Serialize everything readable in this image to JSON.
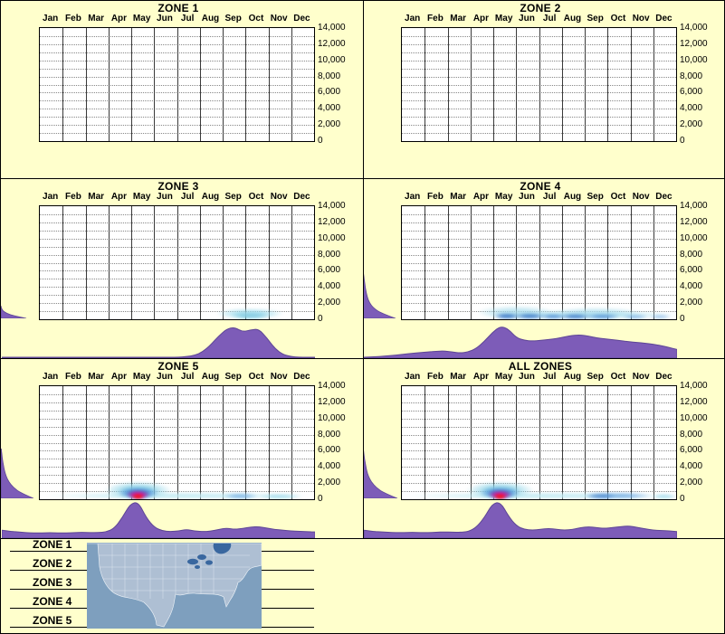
{
  "page": {
    "background": "#FFFFCC",
    "accent_purple": "#7D5CB8",
    "accent_purple_dark": "#5E4596"
  },
  "months": [
    "Jan",
    "Feb",
    "Mar",
    "Apr",
    "May",
    "Jun",
    "Jul",
    "Aug",
    "Sep",
    "Oct",
    "Nov",
    "Dec"
  ],
  "y_ticks": [
    "14,000",
    "12,000",
    "10,000",
    "8,000",
    "6,000",
    "4,000",
    "2,000",
    "0"
  ],
  "legend": {
    "items": [
      "ZONE 1",
      "ZONE 2",
      "ZONE 3",
      "ZONE 4",
      "ZONE 5"
    ],
    "map": "us-zones-map"
  },
  "chart_data": [
    {
      "type": "heatmap",
      "title": "ZONE 1",
      "x_categories": [
        "Jan",
        "Feb",
        "Mar",
        "Apr",
        "May",
        "Jun",
        "Jul",
        "Aug",
        "Sep",
        "Oct",
        "Nov",
        "Dec"
      ],
      "ylim": [
        0,
        14000
      ],
      "y_tick_step": 2000,
      "density_scale": "normalized 0-1",
      "season_density": [
        0,
        0
      ],
      "left_marginal": {
        "peak_height": 0,
        "peak_width": 0,
        "profile": []
      },
      "heat_blobs": []
    },
    {
      "type": "heatmap",
      "title": "ZONE 2",
      "x_categories": [
        "Jan",
        "Feb",
        "Mar",
        "Apr",
        "May",
        "Jun",
        "Jul",
        "Aug",
        "Sep",
        "Oct",
        "Nov",
        "Dec"
      ],
      "ylim": [
        0,
        14000
      ],
      "y_tick_step": 2000,
      "density_scale": "normalized 0-1",
      "season_density": [
        0,
        0
      ],
      "left_marginal": {
        "peak_height": 0,
        "peak_width": 0,
        "profile": []
      },
      "heat_blobs": []
    },
    {
      "type": "heatmap",
      "title": "ZONE 3",
      "x_categories": [
        "Jan",
        "Feb",
        "Mar",
        "Apr",
        "May",
        "Jun",
        "Jul",
        "Aug",
        "Sep",
        "Oct",
        "Nov",
        "Dec"
      ],
      "ylim": [
        0,
        14000
      ],
      "y_tick_step": 2000,
      "density_scale": "normalized 0-1",
      "season_density": [
        0,
        0,
        0,
        0,
        0,
        0,
        0,
        0,
        0,
        0,
        0,
        0,
        0,
        0,
        0,
        0,
        0,
        0,
        0,
        0,
        0,
        0,
        0,
        0.02,
        0.05,
        0.15,
        0.35,
        0.6,
        0.8,
        0.85,
        0.72,
        0.78,
        0.8,
        0.55,
        0.25,
        0.08,
        0.02,
        0,
        0,
        0
      ],
      "left_marginal": {
        "peak_height": 14,
        "peak_width": 28,
        "profile": [
          1,
          0.5,
          0.22,
          0.08,
          0.02,
          0
        ]
      },
      "heat_blobs": [
        {
          "m": 9.2,
          "w": 3.0,
          "h": 16,
          "c": "#9FDCEC",
          "op": 0.85
        },
        {
          "m": 9.2,
          "w": 1.8,
          "h": 10,
          "c": "#7EC8E0",
          "op": 0.8
        }
      ]
    },
    {
      "type": "heatmap",
      "title": "ZONE 4",
      "x_categories": [
        "Jan",
        "Feb",
        "Mar",
        "Apr",
        "May",
        "Jun",
        "Jul",
        "Aug",
        "Sep",
        "Oct",
        "Nov",
        "Dec"
      ],
      "ylim": [
        0,
        14000
      ],
      "y_tick_step": 2000,
      "density_scale": "normalized 0-1",
      "season_density": [
        0,
        0.01,
        0.02,
        0.04,
        0.06,
        0.09,
        0.11,
        0.13,
        0.15,
        0.17,
        0.18,
        0.15,
        0.12,
        0.15,
        0.25,
        0.45,
        0.7,
        0.88,
        0.8,
        0.55,
        0.48,
        0.46,
        0.48,
        0.5,
        0.53,
        0.58,
        0.62,
        0.63,
        0.6,
        0.55,
        0.52,
        0.5,
        0.47,
        0.44,
        0.42,
        0.4,
        0.37,
        0.33,
        0.28,
        0.22
      ],
      "left_marginal": {
        "peak_height": 52,
        "peak_width": 36,
        "profile": [
          1,
          0.55,
          0.32,
          0.2,
          0.14,
          0.1,
          0.07,
          0.05,
          0.03,
          0.01
        ]
      },
      "heat_blobs": [
        {
          "m": 7.8,
          "w": 9.0,
          "h": 13,
          "c": "#BFE9F2",
          "op": 0.95
        },
        {
          "m": 5.0,
          "w": 3.5,
          "h": 20,
          "c": "#A8DCEC",
          "op": 0.7
        },
        {
          "m": 8.5,
          "w": 4.0,
          "h": 18,
          "c": "#A8DCEC",
          "op": 0.6
        },
        {
          "m": 4.6,
          "w": 1.2,
          "h": 9,
          "c": "#2E6FC4",
          "op": 0.85
        },
        {
          "m": 5.6,
          "w": 1.4,
          "h": 9,
          "c": "#2E6FC4",
          "op": 0.8
        },
        {
          "m": 6.6,
          "w": 1.2,
          "h": 8,
          "c": "#3B7FD0",
          "op": 0.75
        },
        {
          "m": 7.6,
          "w": 1.4,
          "h": 8,
          "c": "#2E6FC4",
          "op": 0.8
        },
        {
          "m": 8.8,
          "w": 1.6,
          "h": 8,
          "c": "#3B7FD0",
          "op": 0.7
        },
        {
          "m": 10.2,
          "w": 1.2,
          "h": 7,
          "c": "#5599DD",
          "op": 0.6
        },
        {
          "m": 11.3,
          "w": 1.0,
          "h": 7,
          "c": "#5599DD",
          "op": 0.5
        }
      ]
    },
    {
      "type": "heatmap",
      "title": "ZONE 5",
      "x_categories": [
        "Jan",
        "Feb",
        "Mar",
        "Apr",
        "May",
        "Jun",
        "Jul",
        "Aug",
        "Sep",
        "Oct",
        "Nov",
        "Dec"
      ],
      "ylim": [
        0,
        14000
      ],
      "y_tick_step": 2000,
      "density_scale": "normalized 0-1",
      "season_density": [
        0.2,
        0.17,
        0.15,
        0.13,
        0.12,
        0.12,
        0.13,
        0.12,
        0.12,
        0.13,
        0.14,
        0.13,
        0.13,
        0.15,
        0.25,
        0.55,
        0.95,
        1.0,
        0.55,
        0.28,
        0.18,
        0.16,
        0.18,
        0.22,
        0.18,
        0.16,
        0.17,
        0.22,
        0.26,
        0.22,
        0.25,
        0.29,
        0.3,
        0.26,
        0.22,
        0.2,
        0.18,
        0.17,
        0.16,
        0.15
      ],
      "left_marginal": {
        "peak_height": 55,
        "peak_width": 36,
        "profile": [
          1,
          0.6,
          0.38,
          0.24,
          0.16,
          0.11,
          0.08,
          0.05,
          0.03,
          0.01
        ]
      },
      "heat_blobs": [
        {
          "m": 6.0,
          "w": 12.0,
          "h": 10,
          "c": "#C5ECF4",
          "op": 0.95
        },
        {
          "m": 10.5,
          "w": 2.0,
          "h": 8,
          "c": "#8FD4E8",
          "op": 0.7
        },
        {
          "m": 8.8,
          "w": 1.6,
          "h": 9,
          "c": "#5599DD",
          "op": 0.6
        },
        {
          "m": 4.3,
          "w": 3.0,
          "h": 26,
          "c": "#8FD4E8",
          "op": 0.9
        },
        {
          "m": 4.3,
          "w": 1.8,
          "h": 18,
          "c": "#3B7FD0",
          "op": 0.9
        },
        {
          "m": 4.3,
          "w": 1.1,
          "h": 13,
          "c": "#D3159B",
          "op": 0.95
        },
        {
          "m": 4.3,
          "w": 0.6,
          "h": 8,
          "c": "#FF1111",
          "op": 1
        }
      ]
    },
    {
      "type": "heatmap",
      "title": "ALL ZONES",
      "x_categories": [
        "Jan",
        "Feb",
        "Mar",
        "Apr",
        "May",
        "Jun",
        "Jul",
        "Aug",
        "Sep",
        "Oct",
        "Nov",
        "Dec"
      ],
      "ylim": [
        0,
        14000
      ],
      "y_tick_step": 2000,
      "density_scale": "normalized 0-1",
      "season_density": [
        0.2,
        0.17,
        0.15,
        0.14,
        0.13,
        0.13,
        0.14,
        0.13,
        0.13,
        0.14,
        0.15,
        0.14,
        0.14,
        0.16,
        0.28,
        0.55,
        0.95,
        1.0,
        0.6,
        0.32,
        0.22,
        0.2,
        0.22,
        0.25,
        0.22,
        0.2,
        0.22,
        0.27,
        0.3,
        0.27,
        0.25,
        0.28,
        0.3,
        0.32,
        0.28,
        0.24,
        0.2,
        0.19,
        0.18,
        0.16
      ],
      "left_marginal": {
        "peak_height": 55,
        "peak_width": 38,
        "profile": [
          1,
          0.6,
          0.38,
          0.24,
          0.16,
          0.11,
          0.08,
          0.05,
          0.03,
          0.01
        ]
      },
      "heat_blobs": [
        {
          "m": 6.0,
          "w": 12.0,
          "h": 10,
          "c": "#C5ECF4",
          "op": 0.95
        },
        {
          "m": 9.5,
          "w": 3.0,
          "h": 10,
          "c": "#5599DD",
          "op": 0.65
        },
        {
          "m": 8.7,
          "w": 1.4,
          "h": 9,
          "c": "#2E6FC4",
          "op": 0.6
        },
        {
          "m": 11.5,
          "w": 1.2,
          "h": 8,
          "c": "#8FD4E8",
          "op": 0.7
        },
        {
          "m": 4.3,
          "w": 3.0,
          "h": 26,
          "c": "#8FD4E8",
          "op": 0.9
        },
        {
          "m": 4.3,
          "w": 1.8,
          "h": 18,
          "c": "#3B7FD0",
          "op": 0.9
        },
        {
          "m": 4.3,
          "w": 1.1,
          "h": 13,
          "c": "#D3159B",
          "op": 0.95
        },
        {
          "m": 4.3,
          "w": 0.6,
          "h": 8,
          "c": "#FF1111",
          "op": 1
        }
      ]
    }
  ]
}
